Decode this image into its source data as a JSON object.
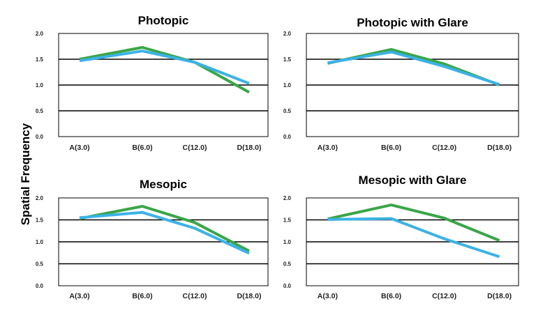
{
  "figure": {
    "ylabel": "Spatial Frequency"
  },
  "chart_data": [
    {
      "type": "line",
      "title": "Photopic",
      "categories": [
        "A(3.0)",
        "B(6.0)",
        "C(12.0)",
        "D(18.0)"
      ],
      "ylim": [
        0,
        2
      ],
      "yticks": [
        "0.0",
        "0.5",
        "1.0",
        "1.5",
        "2.0"
      ],
      "grid": true,
      "series": [
        {
          "color": "#3aa648",
          "values": [
            1.5,
            1.73,
            1.44,
            0.86
          ]
        },
        {
          "color": "#3cb2e6",
          "values": [
            1.47,
            1.66,
            1.44,
            1.03
          ]
        }
      ]
    },
    {
      "type": "line",
      "title": "Photopic with Glare",
      "categories": [
        "A(3.0)",
        "B(6.0)",
        "C(12.0)",
        "D(18.0)"
      ],
      "ylim": [
        0,
        2
      ],
      "yticks": [
        "0.0",
        "0.5",
        "1.0",
        "1.5",
        "2.0"
      ],
      "grid": true,
      "series": [
        {
          "color": "#3aa648",
          "values": [
            1.42,
            1.69,
            1.41,
            1.0
          ]
        },
        {
          "color": "#3cb2e6",
          "values": [
            1.43,
            1.64,
            1.36,
            1.01
          ]
        }
      ]
    },
    {
      "type": "line",
      "title": "Mesopic",
      "categories": [
        "A(3.0)",
        "B(6.0)",
        "C(12.0)",
        "D(18.0)"
      ],
      "ylim": [
        0,
        2
      ],
      "yticks": [
        "0.0",
        "0.5",
        "1.0",
        "1.5",
        "2.0"
      ],
      "grid": true,
      "series": [
        {
          "color": "#3aa648",
          "values": [
            1.53,
            1.81,
            1.44,
            0.79
          ]
        },
        {
          "color": "#3cb2e6",
          "values": [
            1.55,
            1.67,
            1.31,
            0.74
          ]
        }
      ]
    },
    {
      "type": "line",
      "title": "Mesopic with Glare",
      "categories": [
        "A(3.0)",
        "B(6.0)",
        "C(12.0)",
        "D(18.0)"
      ],
      "ylim": [
        0,
        2
      ],
      "yticks": [
        "0.0",
        "0.5",
        "1.0",
        "1.5",
        "2.0"
      ],
      "grid": true,
      "series": [
        {
          "color": "#3aa648",
          "values": [
            1.52,
            1.84,
            1.54,
            1.03
          ]
        },
        {
          "color": "#3cb2e6",
          "values": [
            1.51,
            1.53,
            1.07,
            0.66
          ]
        }
      ]
    }
  ]
}
